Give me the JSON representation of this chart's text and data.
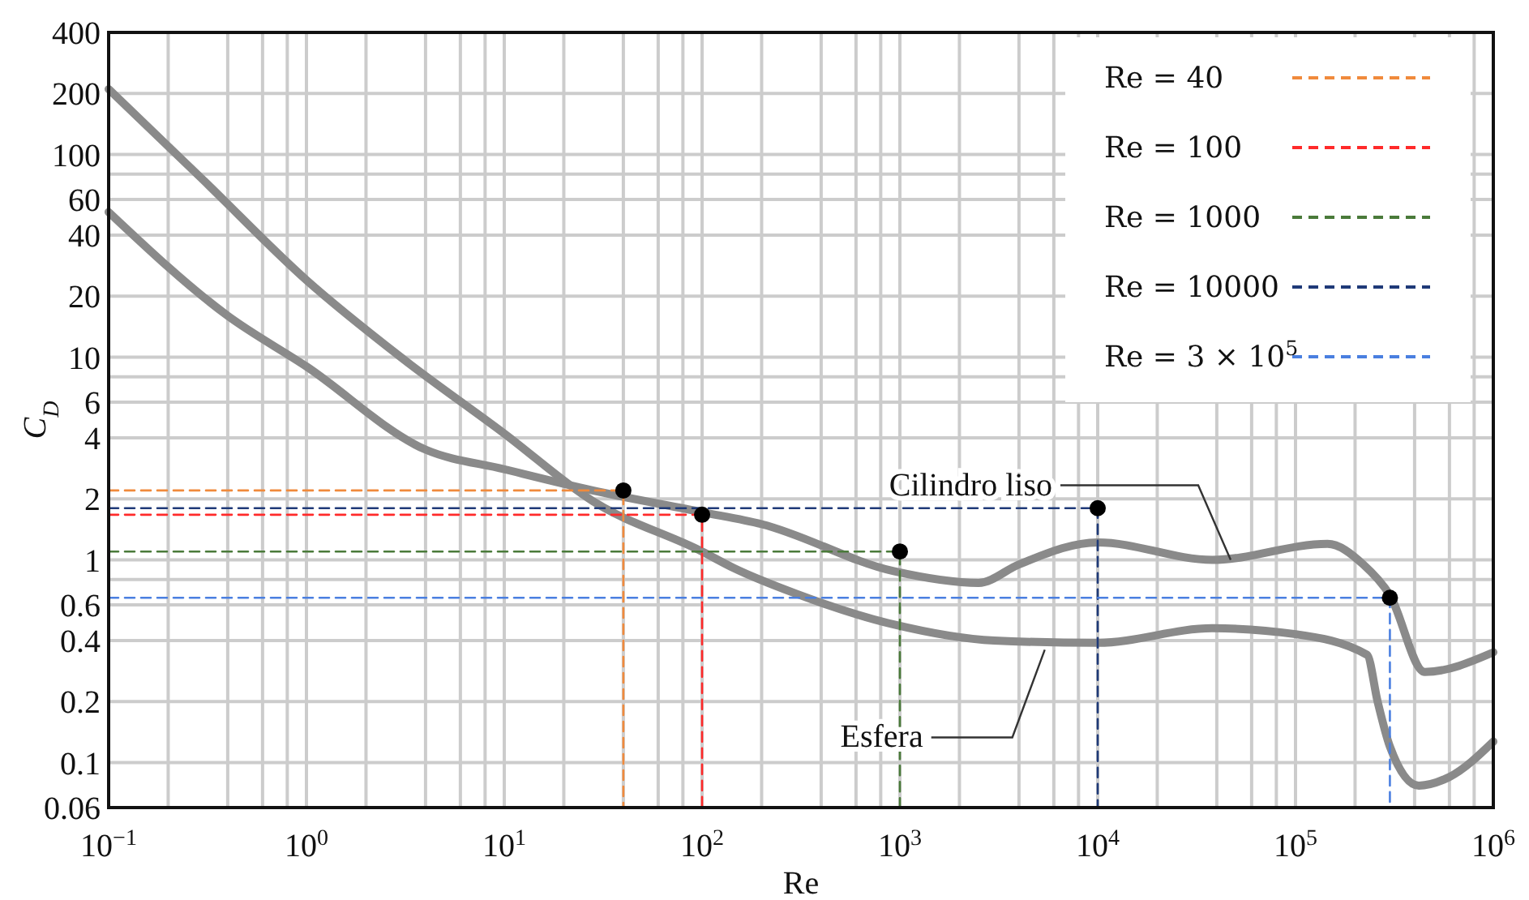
{
  "chart_data": {
    "type": "line",
    "xlabel": "Re",
    "ylabel": "C$_{D}$",
    "log": "xy",
    "grid": true,
    "legend": "top right",
    "xlim": [
      0.1,
      1000000
    ],
    "ylim": [
      0.06,
      400
    ],
    "xticks": [
      {
        "value": 0.1,
        "label": "10$^{−1}$"
      },
      {
        "value": 0.2,
        "label": null
      },
      {
        "value": 0.4,
        "label": null
      },
      {
        "value": 0.6,
        "label": null
      },
      {
        "value": 0.8,
        "label": null
      },
      {
        "value": 1,
        "label": "10$^{0}$"
      },
      {
        "value": 2,
        "label": null
      },
      {
        "value": 4,
        "label": null
      },
      {
        "value": 6,
        "label": null
      },
      {
        "value": 8,
        "label": null
      },
      {
        "value": 10,
        "label": "10$^{1}$"
      },
      {
        "value": 20,
        "label": null
      },
      {
        "value": 40,
        "label": null
      },
      {
        "value": 60,
        "label": null
      },
      {
        "value": 80,
        "label": null
      },
      {
        "value": 100,
        "label": "10$^{2}$"
      },
      {
        "value": 200,
        "label": null
      },
      {
        "value": 400,
        "label": null
      },
      {
        "value": 600,
        "label": null
      },
      {
        "value": 800,
        "label": null
      },
      {
        "value": 1000,
        "label": "10$^{3}$"
      },
      {
        "value": 2000,
        "label": null
      },
      {
        "value": 4000,
        "label": null
      },
      {
        "value": 6000,
        "label": null
      },
      {
        "value": 8000,
        "label": null
      },
      {
        "value": 10000,
        "label": "10$^{4}$"
      },
      {
        "value": 20000,
        "label": null
      },
      {
        "value": 40000,
        "label": null
      },
      {
        "value": 60000,
        "label": null
      },
      {
        "value": 80000,
        "label": null
      },
      {
        "value": 100000,
        "label": "10$^{5}$"
      },
      {
        "value": 200000,
        "label": null
      },
      {
        "value": 400000,
        "label": null
      },
      {
        "value": 600000,
        "label": null
      },
      {
        "value": 800000,
        "label": null
      },
      {
        "value": 1000000,
        "label": "10$^{6}$"
      }
    ],
    "yticks": [
      400,
      200,
      100,
      {
        "value": 80,
        "label": null
      },
      60,
      40,
      20,
      10,
      {
        "value": 8,
        "label": null
      },
      6,
      4,
      2,
      1,
      {
        "value": 0.8,
        "label": null
      },
      0.6,
      0.4,
      0.2,
      0.1,
      0.06
    ],
    "series": [
      {
        "color": "#8a8a8a",
        "line_style": "solid",
        "marker": "none",
        "x": [
          0.1,
          0.3,
          1,
          3,
          10,
          28,
          100,
          145,
          300,
          930,
          3000,
          10000,
          38000,
          100000,
          230000,
          260000,
          300000,
          420000,
          600000,
          1000000
        ],
        "values": [
          210,
          75,
          24,
          10,
          4.2,
          1.95,
          1.1,
          0.91,
          0.68,
          0.48,
          0.4,
          0.39,
          0.46,
          0.43,
          0.34,
          0.2,
          0.12,
          0.077,
          0.085,
          0.127
        ]
      },
      {
        "color": "#8a8a8a",
        "line_style": "solid",
        "marker": "none",
        "x": [
          0.1,
          0.4,
          1,
          4,
          10,
          28,
          100,
          200,
          930,
          2500,
          4000,
          10000,
          38000,
          145000,
          220000,
          300000,
          450000,
          1000000
        ],
        "values": [
          52,
          16,
          9,
          3.5,
          2.8,
          2.2,
          1.72,
          1.5,
          0.88,
          0.77,
          0.95,
          1.22,
          1.0,
          1.2,
          0.95,
          0.67,
          0.28,
          0.35
        ]
      },
      {
        "name": "Re = 40",
        "color": "#f08a3c",
        "line_style": "dashed",
        "marker": "none",
        "x": [
          0.1,
          40,
          40
        ],
        "values": [
          2.2,
          2.2,
          0.06
        ]
      },
      {
        "name": "Re = 100",
        "color": "#ff2a2a",
        "line_style": "dashed",
        "marker": "none",
        "x": [
          0.1,
          100,
          100
        ],
        "values": [
          1.67,
          1.67,
          0.06
        ]
      },
      {
        "name": "Re = 1000",
        "color": "#4a7a3a",
        "line_style": "dashed",
        "marker": "none",
        "x": [
          0.1,
          1000,
          1000
        ],
        "values": [
          1.1,
          1.1,
          0.06
        ]
      },
      {
        "name": "Re = 10000",
        "color": "#1f3a78",
        "line_style": "dashed",
        "marker": "none",
        "x": [
          0.1,
          10000,
          10000
        ],
        "values": [
          1.8,
          1.8,
          0.06
        ]
      },
      {
        "name": "Re = 3 × 10$^{5}$",
        "color": "#4a7fe0",
        "line_style": "dashed",
        "marker": "none",
        "x": [
          0.1,
          300000,
          300000
        ],
        "values": [
          0.65,
          0.65,
          0.06
        ]
      },
      {
        "type": "scatter",
        "color": "#000000",
        "marker": "circle",
        "x": [
          40,
          100,
          1000,
          10000,
          300000
        ],
        "values": [
          2.2,
          1.67,
          1.1,
          1.8,
          0.65
        ]
      }
    ],
    "annotations": [
      {
        "text": "Cilindro liso",
        "x": 47000,
        "y": 1.0
      },
      {
        "text": "Esfera",
        "x": 5400,
        "y": 0.36
      }
    ]
  }
}
